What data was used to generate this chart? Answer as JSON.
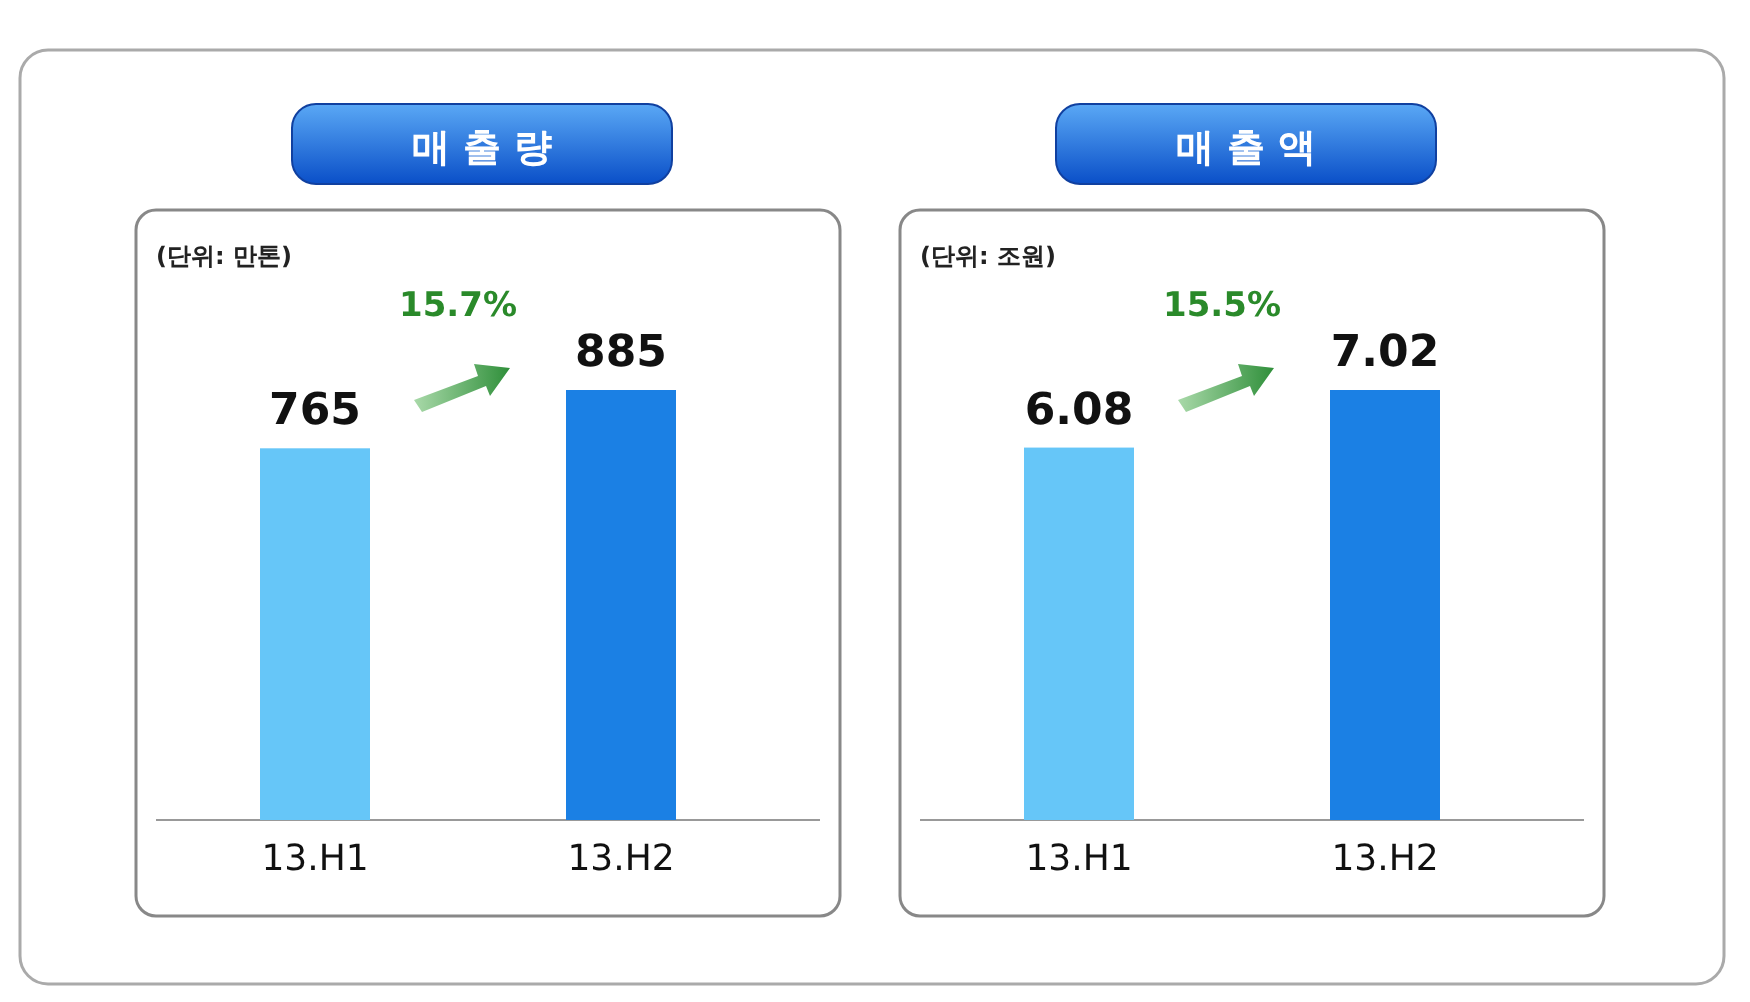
{
  "chart_data": [
    {
      "type": "bar",
      "title": "매 출 량",
      "subtitle": "(단위: 만톤)",
      "categories": [
        "13.H1",
        "13.H2"
      ],
      "values": [
        765,
        885
      ],
      "colors": [
        "#66c6f8",
        "#1b80e4"
      ],
      "data_labels": true,
      "annotations": [
        "15.7%"
      ]
    },
    {
      "type": "bar",
      "title": "매 출 액",
      "subtitle": "(단위: 조원)",
      "categories": [
        "13.H1",
        "13.H2"
      ],
      "values": [
        6.08,
        7.02
      ],
      "colors": [
        "#66c6f8",
        "#1b80e4"
      ],
      "data_labels": true,
      "annotations": [
        "15.5%"
      ]
    }
  ]
}
